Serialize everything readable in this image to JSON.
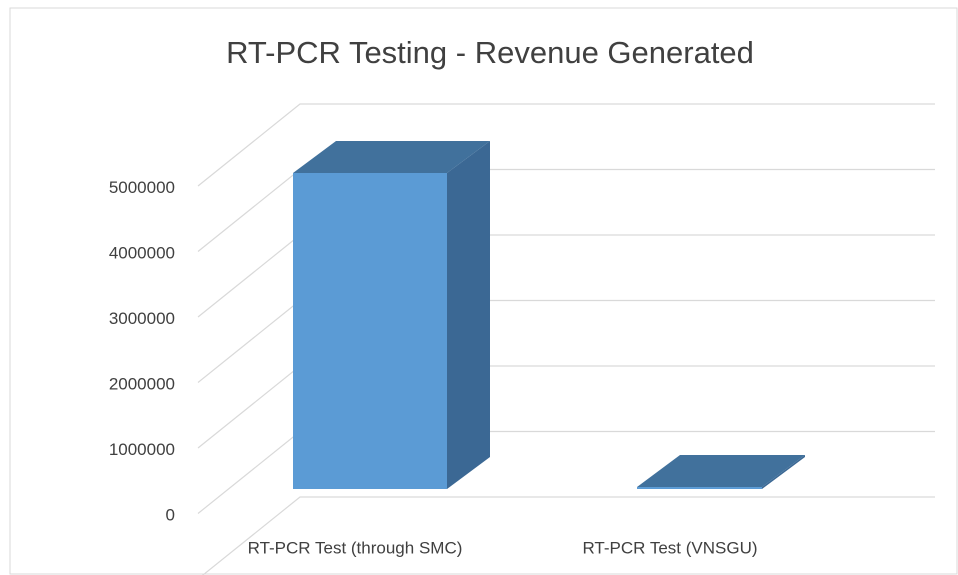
{
  "chart_data": {
    "type": "bar3d",
    "title": "RT-PCR Testing - Revenue Generated",
    "categories": [
      "RT-PCR Test (through SMC)",
      "RT-PCR Test (VNSGU)"
    ],
    "values": [
      4800000,
      30000
    ],
    "colors": {
      "front": "#5b9bd5",
      "side": "#3b6894",
      "top": "#41719c"
    },
    "ylim": [
      0,
      6000000
    ],
    "yticks": [
      0,
      1000000,
      2000000,
      3000000,
      4000000,
      5000000
    ],
    "grid": true
  }
}
